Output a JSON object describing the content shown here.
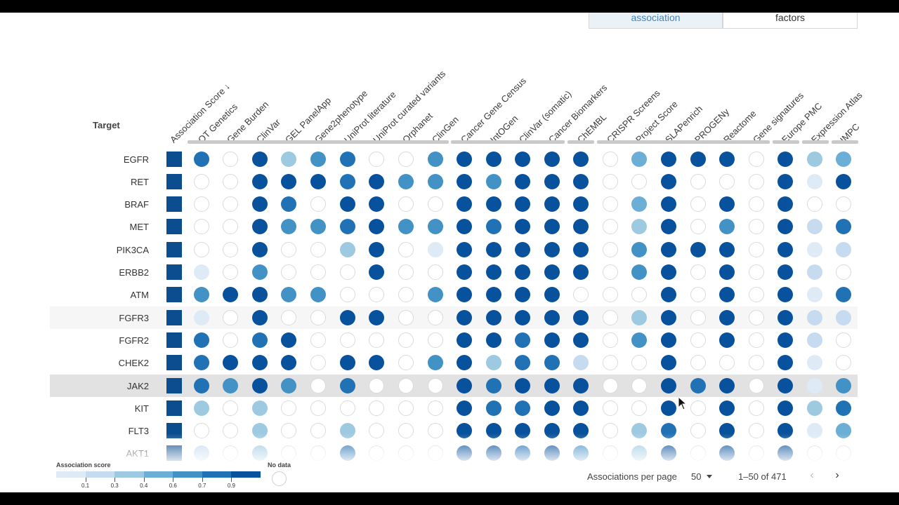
{
  "tabs": [
    {
      "label": "association",
      "active": true
    },
    {
      "label": "factors",
      "active": false
    }
  ],
  "table": {
    "target_header": "Target",
    "columns": [
      "Association Score ↓",
      "OT Genetics",
      "Gene Burden",
      "ClinVar",
      "GEL PanelApp",
      "Gene2phenotype",
      "UniProt literature",
      "UniProt curated variants",
      "Orphanet",
      "ClinGen",
      "Cancer Gene Census",
      "IntOGen",
      "ClinVar (somatic)",
      "Cancer Biomarkers",
      "ChEMBL",
      "CRISPR Screens",
      "Project Score",
      "SLAPenrich",
      "PROGENy",
      "Reactome",
      "Gene signatures",
      "Europe PMC",
      "Expression Atlas",
      "IMPC"
    ],
    "rows": [
      {
        "target": "EGFR",
        "scores": [
          0.8,
          -1,
          0.9,
          0.3,
          0.6,
          0.8,
          -1,
          -1,
          0.6,
          0.9,
          0.9,
          0.9,
          0.9,
          0.9,
          -1,
          0.5,
          0.9,
          0.9,
          0.9,
          -1,
          0.9,
          0.4,
          0.5
        ]
      },
      {
        "target": "RET",
        "scores": [
          -1,
          -1,
          0.9,
          0.9,
          0.9,
          0.8,
          0.9,
          0.7,
          0.7,
          0.9,
          0.6,
          0.9,
          0.9,
          0.9,
          -1,
          -1,
          0.9,
          -1,
          -1,
          -1,
          0.9,
          0.1,
          0.9
        ]
      },
      {
        "target": "BRAF",
        "scores": [
          -1,
          -1,
          0.9,
          0.8,
          -1,
          0.9,
          0.9,
          -1,
          -1,
          0.9,
          0.9,
          0.9,
          0.9,
          0.9,
          -1,
          0.5,
          0.9,
          -1,
          0.9,
          -1,
          0.9,
          -1,
          -1
        ]
      },
      {
        "target": "MET",
        "scores": [
          -1,
          -1,
          0.9,
          0.7,
          0.6,
          0.8,
          0.9,
          0.6,
          0.6,
          0.9,
          0.8,
          0.9,
          0.9,
          0.9,
          -1,
          0.3,
          0.9,
          -1,
          0.6,
          -1,
          0.9,
          0.2,
          0.8
        ]
      },
      {
        "target": "PIK3CA",
        "scores": [
          -1,
          -1,
          0.9,
          -1,
          -1,
          0.3,
          0.9,
          -1,
          0.1,
          0.9,
          0.9,
          0.9,
          0.9,
          0.9,
          -1,
          0.6,
          0.9,
          0.9,
          0.9,
          -1,
          0.9,
          0.1,
          0.2
        ]
      },
      {
        "target": "ERBB2",
        "scores": [
          0.1,
          -1,
          0.6,
          -1,
          -1,
          -1,
          0.9,
          -1,
          -1,
          0.9,
          0.9,
          0.9,
          0.9,
          0.9,
          -1,
          0.6,
          0.9,
          -1,
          0.9,
          -1,
          0.9,
          0.2,
          -1
        ]
      },
      {
        "target": "ATM",
        "scores": [
          0.6,
          0.9,
          0.9,
          0.7,
          0.6,
          -1,
          -1,
          -1,
          0.6,
          0.9,
          0.9,
          0.9,
          0.9,
          -1,
          -1,
          -1,
          0.9,
          -1,
          0.9,
          -1,
          0.9,
          0.1,
          0.8
        ]
      },
      {
        "target": "FGFR3",
        "scores": [
          0.1,
          -1,
          0.9,
          -1,
          -1,
          0.9,
          0.9,
          -1,
          -1,
          0.9,
          0.9,
          0.9,
          0.9,
          0.9,
          -1,
          0.3,
          0.9,
          -1,
          0.9,
          -1,
          0.9,
          0.2,
          0.2
        ]
      },
      {
        "target": "FGFR2",
        "scores": [
          0.8,
          -1,
          0.8,
          0.9,
          -1,
          -1,
          -1,
          -1,
          -1,
          0.9,
          0.9,
          0.8,
          0.9,
          0.9,
          -1,
          0.6,
          0.9,
          -1,
          0.9,
          -1,
          0.9,
          0.2,
          -1
        ]
      },
      {
        "target": "CHEK2",
        "scores": [
          0.8,
          0.9,
          0.9,
          0.9,
          -1,
          0.9,
          0.9,
          -1,
          0.6,
          0.9,
          0.3,
          0.8,
          0.8,
          0.2,
          -1,
          -1,
          0.9,
          -1,
          -1,
          -1,
          0.9,
          0.1,
          -1
        ]
      },
      {
        "target": "JAK2",
        "scores": [
          0.8,
          0.6,
          0.9,
          0.6,
          -1,
          0.8,
          -1,
          -1,
          -1,
          0.9,
          0.8,
          0.9,
          0.9,
          0.9,
          -1,
          -1,
          0.9,
          0.8,
          0.9,
          -1,
          0.9,
          0.1,
          0.6
        ]
      },
      {
        "target": "KIT",
        "scores": [
          0.4,
          -1,
          0.4,
          -1,
          -1,
          -1,
          -1,
          -1,
          -1,
          0.9,
          0.8,
          0.8,
          0.9,
          0.9,
          -1,
          -1,
          0.9,
          -1,
          0.9,
          -1,
          0.9,
          0.4,
          0.8
        ]
      },
      {
        "target": "FLT3",
        "scores": [
          -1,
          -1,
          0.4,
          -1,
          -1,
          0.3,
          -1,
          -1,
          -1,
          0.9,
          0.9,
          0.9,
          0.9,
          0.9,
          -1,
          0.3,
          0.8,
          -1,
          0.9,
          -1,
          0.9,
          0.1,
          0.5
        ]
      },
      {
        "target": "AKT1",
        "scores": [
          0.2,
          -1,
          0.4,
          -1,
          -1,
          0.8,
          -1,
          -1,
          -1,
          0.9,
          0.9,
          0.8,
          0.9,
          0.7,
          -1,
          0.3,
          0.9,
          -1,
          0.9,
          -1,
          0.9,
          -1,
          -1
        ]
      }
    ]
  },
  "legend": {
    "title": "Association score",
    "ticks": [
      "0.1",
      "0.3",
      "0.4",
      "0.6",
      "0.7",
      "0.9"
    ],
    "colors": [
      "#deebf7",
      "#c6dbef",
      "#9ecae1",
      "#6baed6",
      "#4292c6",
      "#2171b5",
      "#08519c"
    ],
    "nodata_label": "No data"
  },
  "pagination": {
    "per_page_label": "Associations per page",
    "per_page_value": "50",
    "range_label": "1–50 of 471",
    "prev_icon": "‹",
    "next_icon": "›"
  }
}
